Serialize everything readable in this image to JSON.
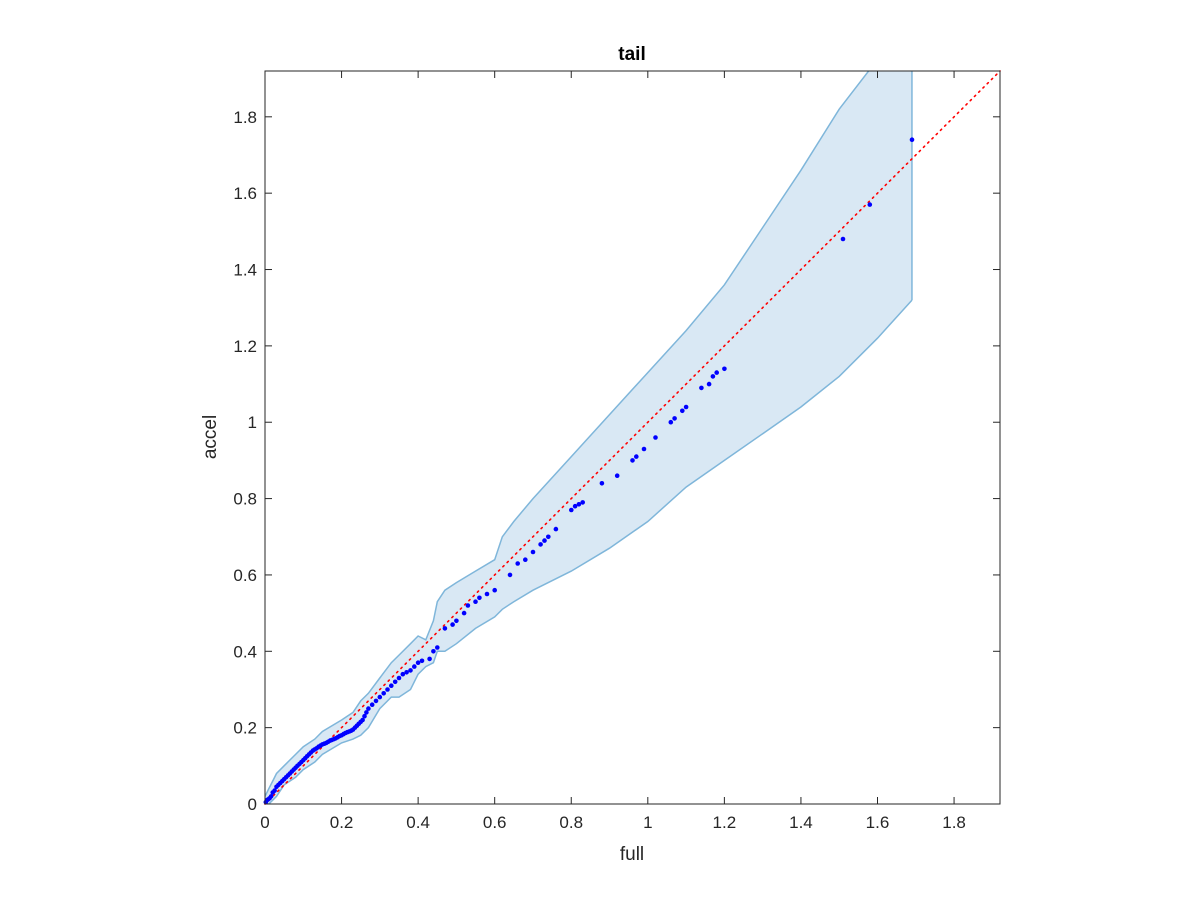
{
  "chart_data": {
    "type": "scatter",
    "title": "tail",
    "xlabel": "full",
    "ylabel": "accel",
    "xlim": [
      0,
      1.92
    ],
    "ylim": [
      0,
      1.92
    ],
    "xticks": [
      0,
      0.2,
      0.4,
      0.6,
      0.8,
      1,
      1.2,
      1.4,
      1.6,
      1.8
    ],
    "yticks": [
      0,
      0.2,
      0.4,
      0.6,
      0.8,
      1,
      1.2,
      1.4,
      1.6,
      1.8
    ],
    "xtick_labels": [
      "0",
      "0.2",
      "0.4",
      "0.6",
      "0.8",
      "1",
      "1.2",
      "1.4",
      "1.6",
      "1.8"
    ],
    "ytick_labels": [
      "0",
      "0.2",
      "0.4",
      "0.6",
      "0.8",
      "1",
      "1.2",
      "1.4",
      "1.6",
      "1.8"
    ],
    "grid": false,
    "colors": {
      "points": "#0000ff",
      "reference_line": "#ff0000",
      "band_fill": "#d9e8f4",
      "band_edge": "#7fb6da",
      "axes": "#262626"
    },
    "reference_line": {
      "style": "dotted",
      "x": [
        0,
        1.92
      ],
      "y": [
        0,
        1.92
      ]
    },
    "confidence_band": {
      "x": [
        0,
        0.01,
        0.02,
        0.03,
        0.05,
        0.08,
        0.1,
        0.13,
        0.15,
        0.2,
        0.23,
        0.25,
        0.27,
        0.3,
        0.33,
        0.35,
        0.38,
        0.4,
        0.42,
        0.44,
        0.45,
        0.47,
        0.5,
        0.55,
        0.6,
        0.62,
        0.65,
        0.7,
        0.8,
        0.9,
        1.0,
        1.1,
        1.2,
        1.3,
        1.4,
        1.5,
        1.6,
        1.69
      ],
      "upper": [
        0.02,
        0.04,
        0.06,
        0.08,
        0.1,
        0.13,
        0.15,
        0.17,
        0.19,
        0.22,
        0.24,
        0.27,
        0.29,
        0.33,
        0.37,
        0.39,
        0.42,
        0.44,
        0.43,
        0.48,
        0.53,
        0.56,
        0.58,
        0.61,
        0.64,
        0.7,
        0.74,
        0.8,
        0.91,
        1.02,
        1.13,
        1.24,
        1.36,
        1.51,
        1.66,
        1.82,
        1.95,
        2.05
      ],
      "lower": [
        0.0,
        0.0,
        0.01,
        0.02,
        0.05,
        0.07,
        0.09,
        0.11,
        0.13,
        0.16,
        0.17,
        0.18,
        0.2,
        0.25,
        0.28,
        0.28,
        0.3,
        0.34,
        0.36,
        0.37,
        0.4,
        0.4,
        0.42,
        0.46,
        0.49,
        0.51,
        0.53,
        0.56,
        0.61,
        0.67,
        0.74,
        0.83,
        0.9,
        0.97,
        1.04,
        1.12,
        1.22,
        1.32
      ]
    },
    "series": [
      {
        "x": [
          0.002,
          0.005,
          0.008,
          0.012,
          0.016,
          0.02,
          0.025,
          0.03,
          0.035,
          0.04,
          0.045,
          0.05,
          0.055,
          0.06,
          0.065,
          0.07,
          0.075,
          0.08,
          0.085,
          0.09,
          0.095,
          0.1,
          0.105,
          0.11,
          0.115,
          0.12,
          0.125,
          0.13,
          0.135,
          0.14,
          0.145,
          0.15,
          0.155,
          0.16,
          0.165,
          0.17,
          0.175,
          0.18,
          0.185,
          0.19,
          0.195,
          0.2,
          0.205,
          0.21,
          0.215,
          0.22,
          0.225,
          0.23,
          0.235,
          0.24,
          0.245,
          0.25,
          0.255,
          0.26,
          0.265,
          0.27,
          0.28,
          0.29,
          0.3,
          0.31,
          0.32,
          0.33,
          0.34,
          0.35,
          0.36,
          0.37,
          0.38,
          0.39,
          0.4,
          0.41,
          0.43,
          0.44,
          0.45,
          0.47,
          0.49,
          0.5,
          0.52,
          0.53,
          0.55,
          0.56,
          0.58,
          0.6,
          0.64,
          0.66,
          0.68,
          0.7,
          0.72,
          0.73,
          0.74,
          0.76,
          0.8,
          0.81,
          0.82,
          0.83,
          0.88,
          0.92,
          0.96,
          0.97,
          0.99,
          1.02,
          1.06,
          1.07,
          1.09,
          1.1,
          1.14,
          1.16,
          1.17,
          1.18,
          1.2,
          1.51,
          1.58,
          1.69
        ],
        "y": [
          0.005,
          0.01,
          0.012,
          0.015,
          0.02,
          0.03,
          0.035,
          0.045,
          0.05,
          0.055,
          0.06,
          0.065,
          0.07,
          0.075,
          0.08,
          0.085,
          0.09,
          0.095,
          0.1,
          0.105,
          0.11,
          0.115,
          0.12,
          0.125,
          0.13,
          0.135,
          0.14,
          0.143,
          0.146,
          0.15,
          0.153,
          0.156,
          0.158,
          0.16,
          0.163,
          0.166,
          0.168,
          0.17,
          0.172,
          0.175,
          0.178,
          0.18,
          0.183,
          0.186,
          0.188,
          0.19,
          0.192,
          0.195,
          0.2,
          0.205,
          0.21,
          0.215,
          0.22,
          0.23,
          0.24,
          0.25,
          0.26,
          0.27,
          0.28,
          0.29,
          0.3,
          0.31,
          0.32,
          0.33,
          0.34,
          0.345,
          0.35,
          0.36,
          0.37,
          0.375,
          0.38,
          0.4,
          0.41,
          0.46,
          0.47,
          0.48,
          0.5,
          0.52,
          0.53,
          0.54,
          0.55,
          0.56,
          0.6,
          0.63,
          0.64,
          0.66,
          0.68,
          0.69,
          0.7,
          0.72,
          0.77,
          0.78,
          0.785,
          0.79,
          0.84,
          0.86,
          0.9,
          0.91,
          0.93,
          0.96,
          1.0,
          1.01,
          1.03,
          1.04,
          1.09,
          1.1,
          1.12,
          1.13,
          1.14,
          1.48,
          1.57,
          1.74
        ]
      }
    ]
  }
}
